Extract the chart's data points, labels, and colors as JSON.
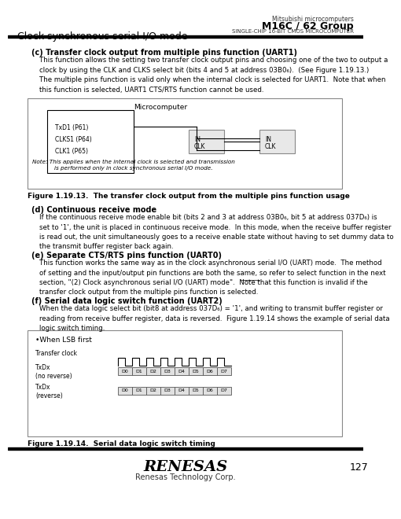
{
  "title_right_top": "Mitsubishi microcomputers",
  "title_right_main": "M16C / 62 Group",
  "title_right_sub": "SINGLE-CHIP 16-BIT CMOS MICROCOMPUTER",
  "title_left": "Clock synchronous serial I/O mode",
  "page_number": "127",
  "section_c_title": "(c) Transfer clock output from multiple pins function (UART1)",
  "section_c_text1": "This function allows the setting two transfer clock output pins and choosing one of the two to output a clock by using the CLK and CLKS select bit (bits 4 and 5 at address 03B0⁶).  (See Figure 1.19.13.)  The multiple pins function is valid only when the internal clock is selected for UART1.  Note that when this function is selected, UART1 CTS/RTS function cannot be used.",
  "fig1_label": "Microcomputer",
  "fig1_pin1": "TxD1 (P61)",
  "fig1_pin2": "CLKS1 (P64)",
  "fig1_pin3": "CLK1 (P65)",
  "fig1_note": "Note: This applies when the internal clock is selected and transmission\nis performed only in clock synchronous serial I/O mode.",
  "fig1_caption": "Figure 1.19.13.  The transfer clock output from the multiple pins function usage",
  "section_d_title": "(d) Continuous receive mode",
  "section_d_text": "If the continuous receive mode enable bit (bits 2 and 3 at address 03B0⁶, bit 5 at address 037D⁶) is set to '1', the unit is placed in continuous receive mode.  In this mode, when the receive buffer register is read out, the unit simultaneously goes to a receive enable state without having to set dummy data to the transmit buffer register back again.",
  "section_e_title": "(e) Separate CTS/RTS pins function (UART0)",
  "section_e_text": "This function works the same way as in the clock asynchronous serial I/O (UART) mode.  The method of setting and the input/output pin functions are both the same, so refer to select function in the next section, \"(2) Clock asynchronous serial I/O (UART) mode\".  Note that this function is invalid if the transfer clock output from the multiple pins function is selected.",
  "section_f_title": "(f) Serial data logic switch function (UART2)",
  "section_f_text": "When the data logic select bit (bit8 at address 037D⁶) = '1', and writing to transmit buffer register or reading from receive buffer register, data is reversed.  Figure 1.19.14 shows the example of serial data logic switch timing.",
  "fig2_when": "•When LSB first",
  "fig2_caption": "Figure 1.19.14.  Serial data logic switch timing",
  "bg_color": "#ffffff",
  "text_color": "#000000",
  "box_color": "#c8c8c8",
  "diagram_bg": "#f0f0f0"
}
